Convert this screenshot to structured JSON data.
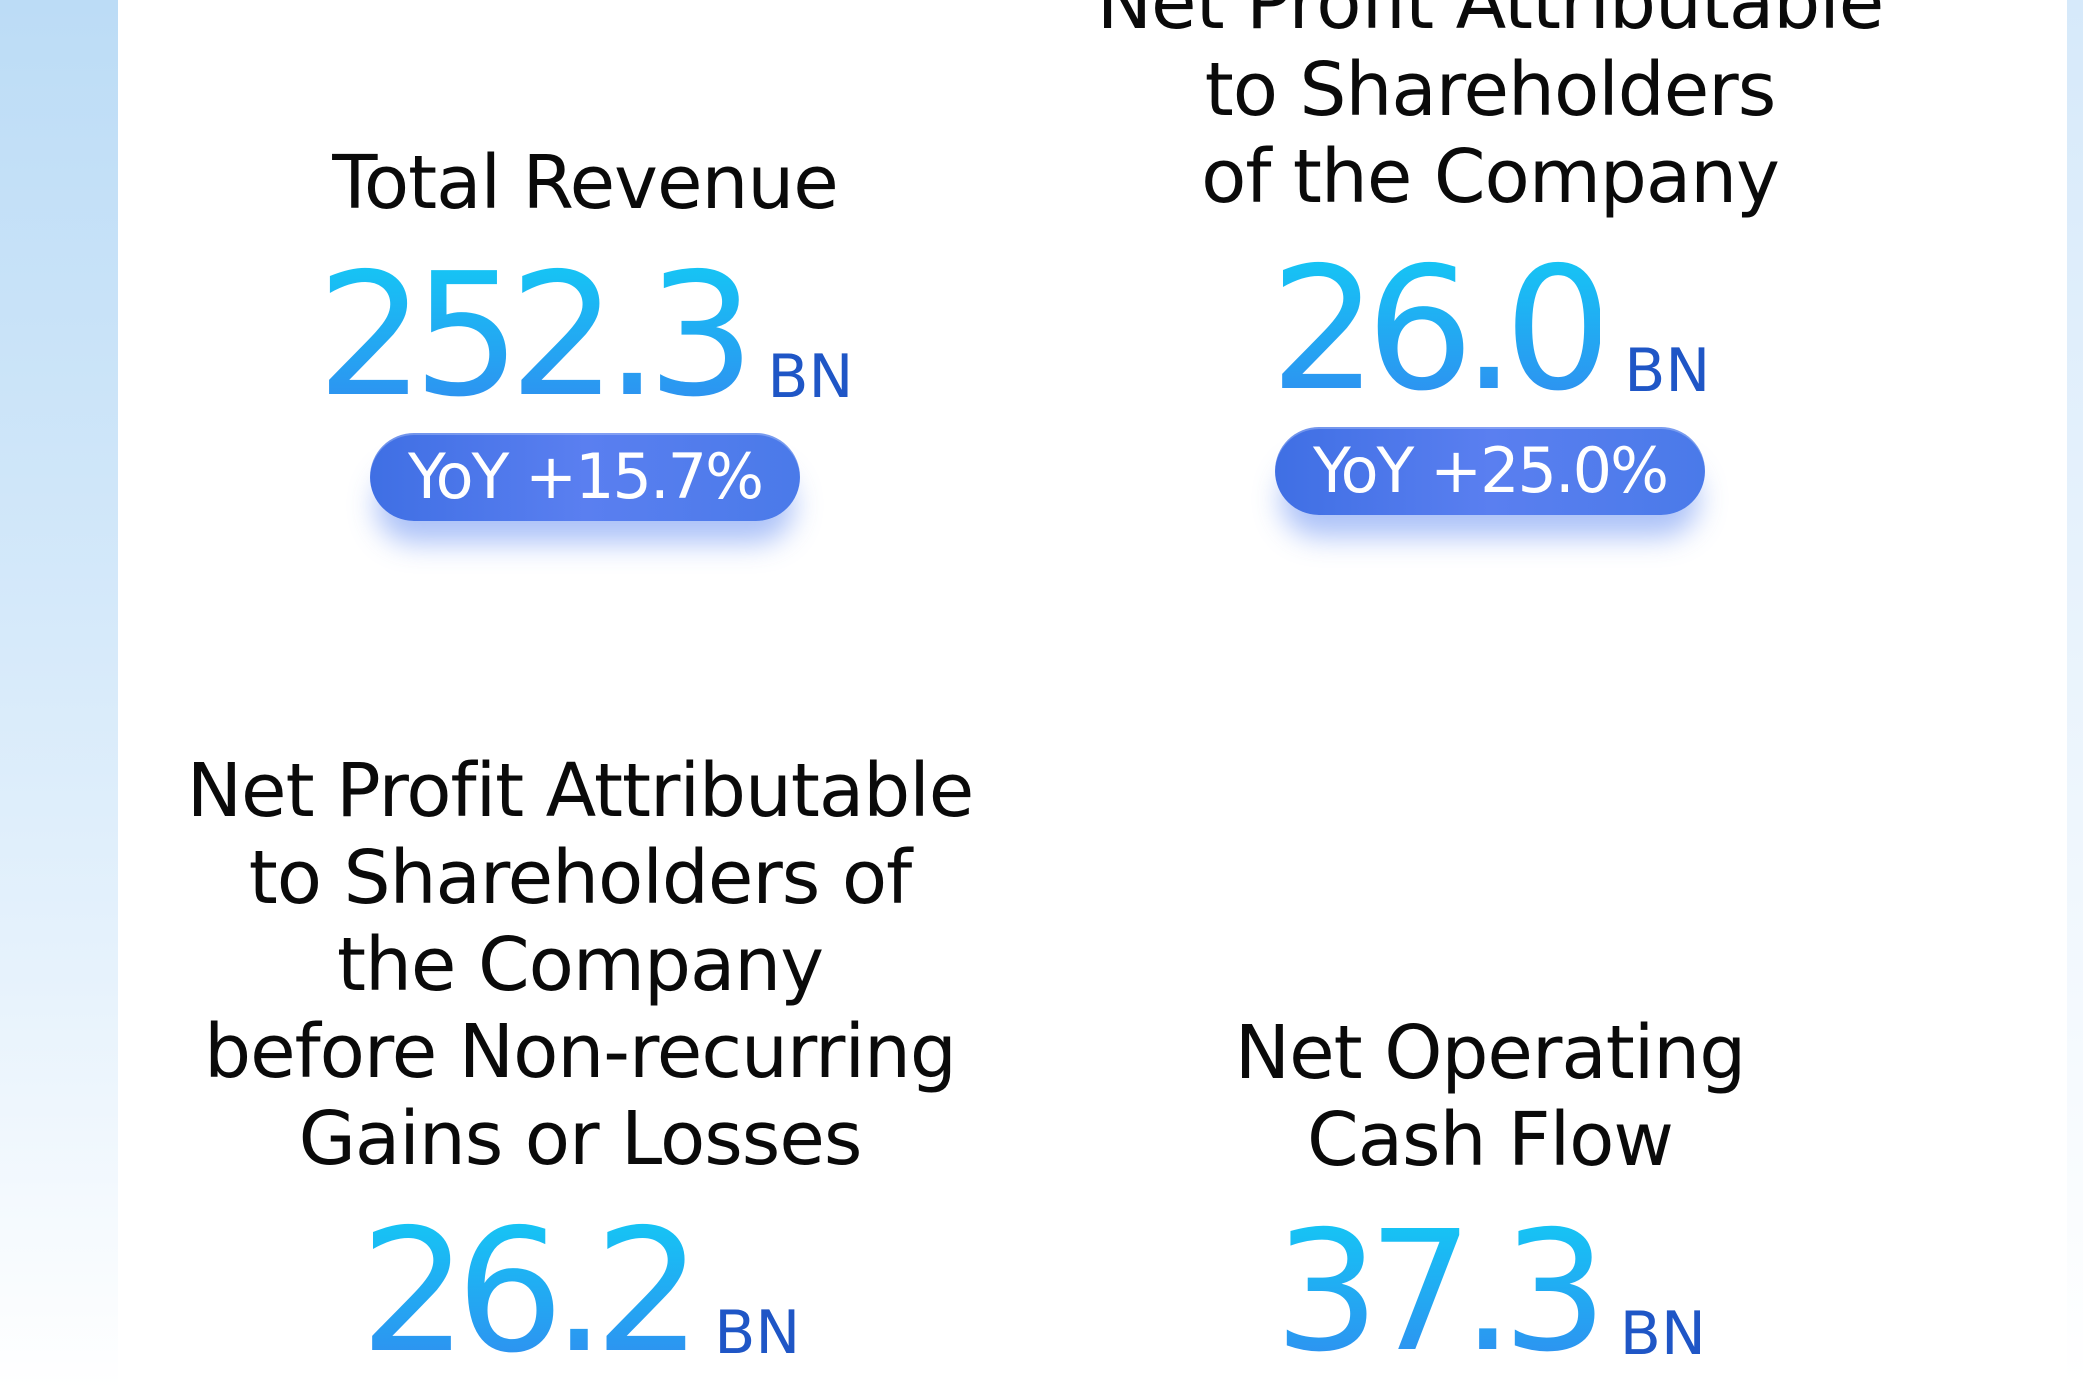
{
  "metrics": {
    "total_revenue": {
      "title": "Total Revenue",
      "value": "252.3",
      "unit": "BN",
      "yoy": "YoY +15.7%"
    },
    "net_profit": {
      "title": "Net Profit Attributable\nto Shareholders\nof the Company",
      "value": "26.0",
      "unit": "BN",
      "yoy": "YoY +25.0%"
    },
    "net_profit_non_recurring": {
      "title": "Net Profit Attributable\nto Shareholders of\nthe Company\nbefore Non-recurring\nGains or Losses",
      "value": "26.2",
      "unit": "BN"
    },
    "operating_cash_flow": {
      "title": "Net Operating\nCash Flow",
      "value": "37.3",
      "unit": "BN"
    }
  },
  "colors": {
    "value_gradient_top": "#15c6f5",
    "value_gradient_bottom": "#2f8ff0",
    "unit": "#1f56c6",
    "pill": "#4a7ae9",
    "title": "#0a0a0a"
  }
}
